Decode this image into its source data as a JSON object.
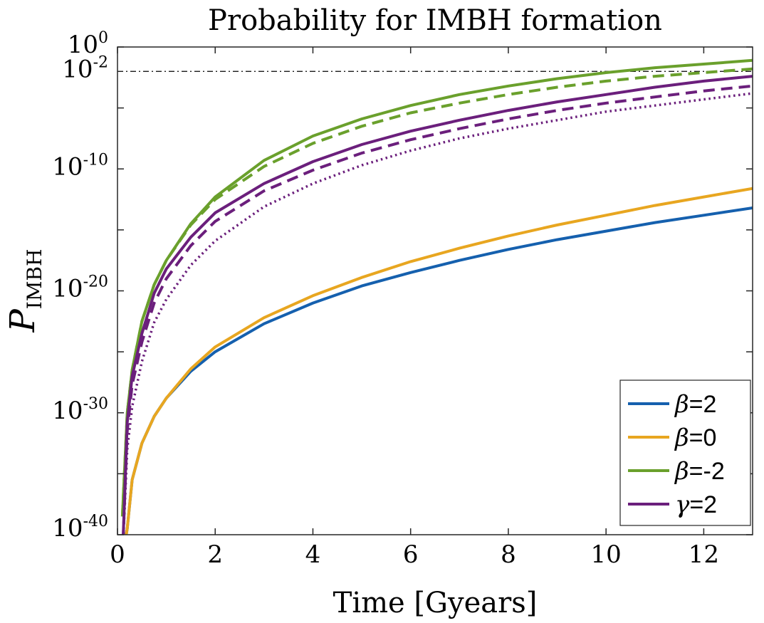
{
  "chart_data": {
    "type": "line",
    "title": "Probability for IMBH formation",
    "xlabel": "Time [Gyears]",
    "ylabel": {
      "base": "P",
      "subscript": "IMBH"
    },
    "xlim": [
      0,
      13
    ],
    "ylim_log10": [
      -40,
      0
    ],
    "xticks": [
      0,
      2,
      4,
      6,
      8,
      10,
      12
    ],
    "xtick_labels": [
      "0",
      "2",
      "4",
      "6",
      "8",
      "10",
      "12"
    ],
    "yticks": [
      {
        "log10": -40,
        "base": "10",
        "exp": "-40"
      },
      {
        "log10": -30,
        "base": "10",
        "exp": "-30"
      },
      {
        "log10": -20,
        "base": "10",
        "exp": "-20"
      },
      {
        "log10": -10,
        "base": "10",
        "exp": "-10"
      },
      {
        "log10": -2,
        "base": "10",
        "exp": "-2"
      },
      {
        "log10": 0,
        "base": "10",
        "exp": "0"
      }
    ],
    "reference_line": {
      "log10": -2,
      "style": "dash-dot",
      "color": "#000000"
    },
    "x": [
      0.1,
      0.2,
      0.3,
      0.5,
      0.75,
      1,
      1.5,
      2,
      3,
      4,
      5,
      6,
      7,
      8,
      9,
      10,
      11,
      12,
      13
    ],
    "series": [
      {
        "name": "beta=2",
        "color": "#1560ae",
        "dash": "solid",
        "values": [
          -42,
          -39.5,
          -35.5,
          -32.5,
          -30.3,
          -28.8,
          -26.6,
          -25.0,
          -22.7,
          -21.0,
          -19.6,
          -18.5,
          -17.5,
          -16.6,
          -15.8,
          -15.1,
          -14.4,
          -13.8,
          -13.2
        ]
      },
      {
        "name": "beta=0",
        "color": "#e8a620",
        "dash": "solid",
        "values": [
          -42,
          -39.5,
          -35.5,
          -32.5,
          -30.3,
          -28.8,
          -26.4,
          -24.6,
          -22.2,
          -20.4,
          -18.9,
          -17.6,
          -16.5,
          -15.5,
          -14.6,
          -13.8,
          -13.0,
          -12.3,
          -11.6
        ]
      },
      {
        "name": "beta=-2",
        "color": "#6aa02c",
        "dash": "solid",
        "values": [
          -38.5,
          -30.0,
          -26.5,
          -22.5,
          -19.5,
          -17.5,
          -14.5,
          -12.3,
          -9.3,
          -7.3,
          -5.9,
          -4.8,
          -3.9,
          -3.2,
          -2.6,
          -2.1,
          -1.7,
          -1.4,
          -1.1
        ]
      },
      {
        "name": "beta=-2 (dashed)",
        "color": "#6aa02c",
        "dash": "dashed",
        "legend": false,
        "values": [
          -38.5,
          -30.0,
          -26.5,
          -22.5,
          -19.5,
          -17.5,
          -14.6,
          -12.5,
          -9.8,
          -7.9,
          -6.5,
          -5.4,
          -4.6,
          -3.9,
          -3.3,
          -2.8,
          -2.4,
          -2.1,
          -1.8
        ]
      },
      {
        "name": "gamma=2",
        "color": "#6b1f7c",
        "dash": "solid",
        "values": [
          -42,
          -30.8,
          -27.0,
          -23.5,
          -20.2,
          -18.2,
          -15.6,
          -13.6,
          -11.2,
          -9.4,
          -8.0,
          -6.9,
          -6.0,
          -5.2,
          -4.5,
          -3.9,
          -3.3,
          -2.8,
          -2.4
        ]
      },
      {
        "name": "gamma=2 (dashed)",
        "color": "#6b1f7c",
        "dash": "dashed",
        "legend": false,
        "values": [
          -42,
          -31.5,
          -27.7,
          -24.2,
          -21.0,
          -19.0,
          -16.3,
          -14.3,
          -11.8,
          -10.1,
          -8.7,
          -7.6,
          -6.7,
          -5.9,
          -5.2,
          -4.6,
          -4.1,
          -3.6,
          -3.2
        ]
      },
      {
        "name": "gamma=2 (dotted)",
        "color": "#6b1f7c",
        "dash": "dotted",
        "legend": false,
        "values": [
          -42,
          -33.0,
          -29.5,
          -25.8,
          -22.6,
          -20.7,
          -17.9,
          -15.9,
          -13.1,
          -11.2,
          -9.7,
          -8.5,
          -7.5,
          -6.7,
          -6.0,
          -5.3,
          -4.8,
          -4.3,
          -3.8
        ]
      }
    ],
    "legend": {
      "placement": "bottom-right",
      "entries": [
        {
          "symbol": "β",
          "text": "=2",
          "color": "#1560ae"
        },
        {
          "symbol": "β",
          "text": "=0",
          "color": "#e8a620"
        },
        {
          "symbol": "β",
          "text": "=-2",
          "color": "#6aa02c"
        },
        {
          "symbol": "γ",
          "text": "=2",
          "color": "#6b1f7c"
        }
      ]
    }
  }
}
